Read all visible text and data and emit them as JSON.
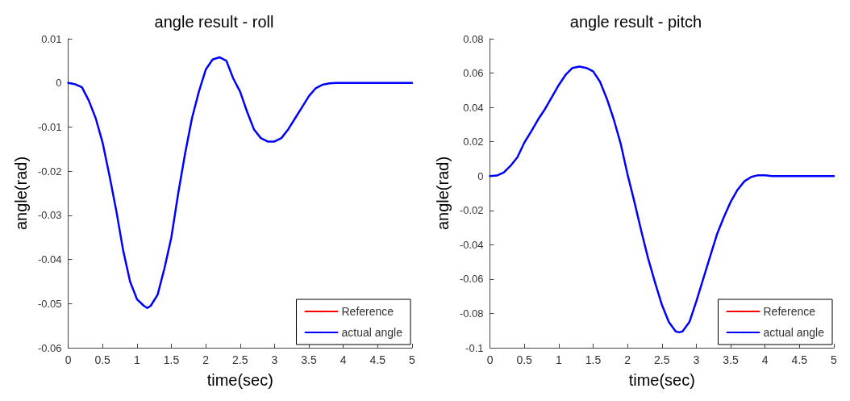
{
  "chart_data": [
    {
      "type": "line",
      "title": "angle result - roll",
      "xlabel": "time(sec)",
      "ylabel": "angle(rad)",
      "x": [
        0,
        0.1,
        0.2,
        0.3,
        0.4,
        0.5,
        0.6,
        0.7,
        0.8,
        0.9,
        1.0,
        1.1,
        1.15,
        1.2,
        1.3,
        1.4,
        1.5,
        1.6,
        1.7,
        1.8,
        1.9,
        2.0,
        2.1,
        2.2,
        2.3,
        2.4,
        2.5,
        2.6,
        2.7,
        2.8,
        2.9,
        3.0,
        3.1,
        3.2,
        3.3,
        3.4,
        3.5,
        3.6,
        3.7,
        3.8,
        3.9,
        4.5,
        5
      ],
      "series": [
        {
          "name": "Reference",
          "color": "#ff0000",
          "values": [
            null,
            null,
            null,
            null,
            null,
            null,
            null,
            null,
            null,
            null,
            null,
            null,
            null,
            null,
            null,
            null,
            null,
            null,
            null,
            null,
            null,
            null,
            null,
            null,
            null,
            null,
            null,
            null,
            null,
            null,
            null,
            null,
            null,
            null,
            null,
            null,
            null,
            null,
            null,
            null,
            null,
            null,
            null
          ]
        },
        {
          "name": "actual angle",
          "color": "#0000ff",
          "values": [
            0,
            -0.0003,
            -0.001,
            -0.004,
            -0.008,
            -0.0135,
            -0.021,
            -0.029,
            -0.038,
            -0.045,
            -0.049,
            -0.0505,
            -0.051,
            -0.0505,
            -0.048,
            -0.042,
            -0.035,
            -0.025,
            -0.016,
            -0.008,
            -0.002,
            0.003,
            0.0053,
            0.0058,
            0.005,
            0.001,
            -0.002,
            -0.0065,
            -0.0105,
            -0.0125,
            -0.0133,
            -0.0133,
            -0.0125,
            -0.0105,
            -0.008,
            -0.0055,
            -0.003,
            -0.0012,
            -0.0004,
            -0.0001,
            0,
            0,
            0
          ]
        }
      ],
      "xlim": [
        0,
        5
      ],
      "xticks": [
        0,
        0.5,
        1,
        1.5,
        2,
        2.5,
        3,
        3.5,
        4,
        4.5,
        5
      ],
      "ylim": [
        -0.06,
        0.01
      ],
      "yticks": [
        -0.06,
        -0.05,
        -0.04,
        -0.03,
        -0.02,
        -0.01,
        0,
        0.01
      ],
      "grid": false,
      "legend": "bottom right",
      "marker": "none",
      "line_style": "solid"
    },
    {
      "type": "line",
      "title": "angle result - pitch",
      "xlabel": "time(sec)",
      "ylabel": "angle(rad)",
      "x": [
        0,
        0.1,
        0.2,
        0.3,
        0.4,
        0.5,
        0.6,
        0.7,
        0.8,
        0.9,
        1.0,
        1.1,
        1.2,
        1.3,
        1.4,
        1.5,
        1.6,
        1.7,
        1.8,
        1.9,
        2.0,
        2.1,
        2.2,
        2.3,
        2.4,
        2.5,
        2.6,
        2.7,
        2.75,
        2.8,
        2.9,
        3.0,
        3.1,
        3.2,
        3.3,
        3.4,
        3.5,
        3.6,
        3.7,
        3.8,
        3.9,
        4.0,
        4.1,
        4.5,
        5
      ],
      "series": [
        {
          "name": "Reference",
          "color": "#ff0000",
          "values": [
            null,
            null,
            null,
            null,
            null,
            null,
            null,
            null,
            null,
            null,
            null,
            null,
            null,
            null,
            null,
            null,
            null,
            null,
            null,
            null,
            null,
            null,
            null,
            null,
            null,
            null,
            null,
            null,
            null,
            null,
            null,
            null,
            null,
            null,
            null,
            null,
            null,
            null,
            null,
            null,
            null,
            null,
            null,
            null,
            null
          ]
        },
        {
          "name": "actual angle",
          "color": "#0000ff",
          "values": [
            0,
            0.0003,
            0.002,
            0.006,
            0.011,
            0.0195,
            0.026,
            0.033,
            0.039,
            0.046,
            0.053,
            0.059,
            0.063,
            0.0638,
            0.063,
            0.061,
            0.055,
            0.045,
            0.033,
            0.019,
            0.001,
            -0.015,
            -0.032,
            -0.048,
            -0.062,
            -0.075,
            -0.085,
            -0.0905,
            -0.091,
            -0.0905,
            -0.085,
            -0.073,
            -0.06,
            -0.047,
            -0.034,
            -0.024,
            -0.015,
            -0.008,
            -0.003,
            -0.0005,
            0.0005,
            0.0005,
            0,
            0,
            0
          ]
        }
      ],
      "xlim": [
        0,
        5
      ],
      "xticks": [
        0,
        0.5,
        1,
        1.5,
        2,
        2.5,
        3,
        3.5,
        4,
        4.5,
        5
      ],
      "ylim": [
        -0.1,
        0.08
      ],
      "yticks": [
        -0.1,
        -0.08,
        -0.06,
        -0.04,
        -0.02,
        0,
        0.02,
        0.04,
        0.06,
        0.08
      ],
      "grid": false,
      "legend": "bottom right",
      "marker": "none",
      "line_style": "solid"
    }
  ]
}
